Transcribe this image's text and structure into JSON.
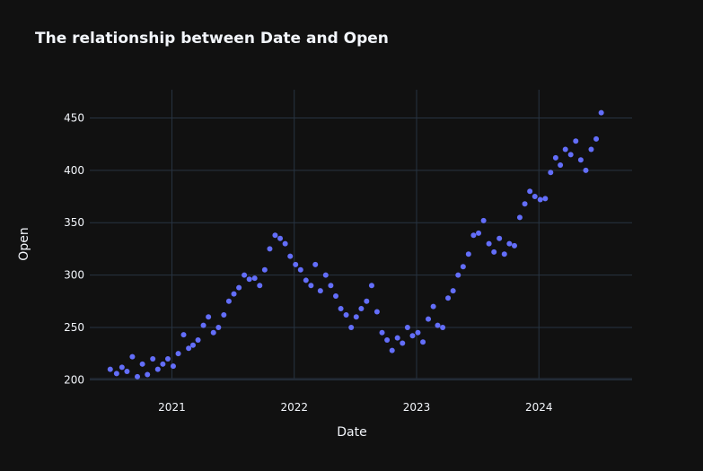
{
  "chart_data": {
    "type": "scatter",
    "title": "The relationship between Date and Open",
    "xlabel": "Date",
    "ylabel": "Open",
    "x_ticks": [
      "2021",
      "2022",
      "2023",
      "2024"
    ],
    "y_ticks": [
      200,
      250,
      300,
      350,
      400,
      450
    ],
    "ylim": [
      184,
      477
    ],
    "xlim": [
      "2020-05-01",
      "2024-10-05"
    ],
    "grid": true,
    "marker_color": "#636efa",
    "series": [
      {
        "x": [
          "2020-07-01",
          "2020-07-20",
          "2020-08-05",
          "2020-08-20",
          "2020-09-05",
          "2020-09-20",
          "2020-10-05",
          "2020-10-20",
          "2020-11-05",
          "2020-11-20",
          "2020-12-05",
          "2020-12-20",
          "2021-01-05",
          "2021-01-20",
          "2021-02-05",
          "2021-02-20",
          "2021-03-05",
          "2021-03-20",
          "2021-04-05",
          "2021-04-20",
          "2021-05-05",
          "2021-05-20",
          "2021-06-05",
          "2021-06-20",
          "2021-07-05",
          "2021-07-20",
          "2021-08-05",
          "2021-08-20",
          "2021-09-05",
          "2021-09-20",
          "2021-10-05",
          "2021-10-20",
          "2021-11-05",
          "2021-11-20",
          "2021-12-05",
          "2021-12-20",
          "2022-01-05",
          "2022-01-20",
          "2022-02-05",
          "2022-02-20",
          "2022-03-05",
          "2022-03-20",
          "2022-04-05",
          "2022-04-20",
          "2022-05-05",
          "2022-05-20",
          "2022-06-05",
          "2022-06-20",
          "2022-07-05",
          "2022-07-20",
          "2022-08-05",
          "2022-08-20",
          "2022-09-05",
          "2022-09-20",
          "2022-10-05",
          "2022-10-20",
          "2022-11-05",
          "2022-11-20",
          "2022-12-05",
          "2022-12-20",
          "2023-01-05",
          "2023-01-20",
          "2023-02-05",
          "2023-02-20",
          "2023-03-05",
          "2023-03-20",
          "2023-04-05",
          "2023-04-20",
          "2023-05-05",
          "2023-05-20",
          "2023-06-05",
          "2023-06-20",
          "2023-07-05",
          "2023-07-20",
          "2023-08-05",
          "2023-08-20",
          "2023-09-05",
          "2023-09-20",
          "2023-10-05",
          "2023-10-20",
          "2023-11-05",
          "2023-11-20",
          "2023-12-05",
          "2023-12-20",
          "2024-01-05",
          "2024-01-20",
          "2024-02-05",
          "2024-02-20",
          "2024-03-05",
          "2024-03-20",
          "2024-04-05",
          "2024-04-20",
          "2024-05-05",
          "2024-05-20",
          "2024-06-05",
          "2024-06-20",
          "2024-07-05"
        ],
        "y": [
          210,
          206,
          212,
          208,
          222,
          203,
          215,
          205,
          220,
          210,
          215,
          220,
          213,
          225,
          243,
          230,
          233,
          238,
          252,
          260,
          245,
          250,
          262,
          275,
          282,
          288,
          300,
          296,
          297,
          290,
          305,
          325,
          338,
          335,
          330,
          318,
          310,
          305,
          295,
          290,
          310,
          285,
          300,
          290,
          280,
          268,
          262,
          250,
          260,
          268,
          275,
          290,
          265,
          245,
          238,
          228,
          240,
          235,
          250,
          242,
          245,
          236,
          258,
          270,
          252,
          250,
          278,
          285,
          300,
          308,
          320,
          338,
          340,
          352,
          330,
          322,
          335,
          320,
          330,
          328,
          355,
          368,
          380,
          375,
          372,
          373,
          398,
          412,
          405,
          420,
          415,
          428,
          410,
          400,
          420,
          430,
          455
        ]
      }
    ]
  }
}
